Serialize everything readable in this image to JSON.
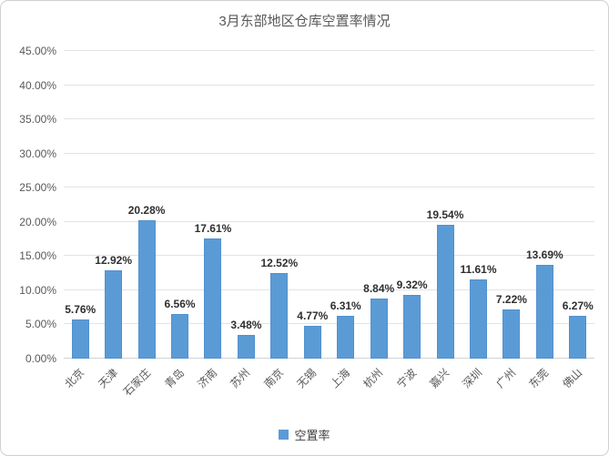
{
  "title": "3月东部地区仓库空置率情况",
  "legend": {
    "label": "空置率",
    "swatch_color": "#5B9BD5"
  },
  "chart_data": {
    "type": "bar",
    "title": "3月东部地区仓库空置率情况",
    "categories": [
      "北京",
      "天津",
      "石家庄",
      "青岛",
      "济南",
      "苏州",
      "南京",
      "无锡",
      "上海",
      "杭州",
      "宁波",
      "嘉兴",
      "深圳",
      "广州",
      "东莞",
      "佛山"
    ],
    "series": [
      {
        "name": "空置率",
        "values": [
          5.76,
          12.92,
          20.28,
          6.56,
          17.61,
          3.48,
          12.52,
          4.77,
          6.31,
          8.84,
          9.32,
          19.54,
          11.61,
          7.22,
          13.69,
          6.27
        ]
      }
    ],
    "data_labels": [
      "5.76%",
      "12.92%",
      "20.28%",
      "6.56%",
      "17.61%",
      "3.48%",
      "12.52%",
      "4.77%",
      "6.31%",
      "8.84%",
      "9.32%",
      "19.54%",
      "11.61%",
      "7.22%",
      "13.69%",
      "6.27%"
    ],
    "xlabel": "",
    "ylabel": "",
    "ylim": [
      0,
      45
    ],
    "y_tick_step": 5,
    "y_tick_labels": [
      "0.00%",
      "5.00%",
      "10.00%",
      "15.00%",
      "20.00%",
      "25.00%",
      "30.00%",
      "35.00%",
      "40.00%",
      "45.00%"
    ],
    "grid": true,
    "legend_position": "bottom",
    "bar_color": "#5B9BD5"
  },
  "colors": {
    "bar": "#5B9BD5",
    "gridline": "#e3e3e3",
    "axis_line": "#d2d2d2",
    "title_text": "#595959",
    "axis_text": "#595959",
    "data_label_text": "#2f2f2f",
    "frame_border": "#cfcfcf"
  }
}
